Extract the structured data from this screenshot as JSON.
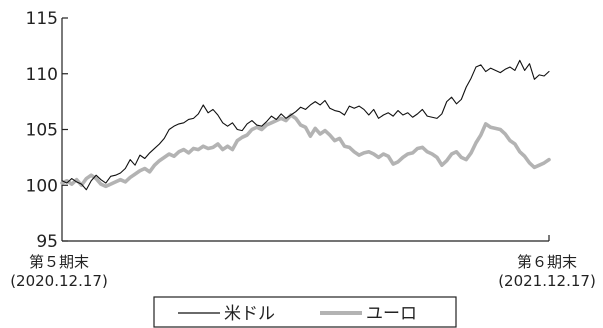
{
  "chart_data": {
    "type": "line",
    "ylim": [
      95,
      115
    ],
    "yticks": [
      95,
      100,
      105,
      110,
      115
    ],
    "x_start_label": "第５期末",
    "x_start_date": "(2020.12.17)",
    "x_end_label": "第６期末",
    "x_end_date": "(2021.12.17)",
    "legend": {
      "placement": "bottom-center"
    },
    "x_range": [
      0,
      100
    ],
    "series": [
      {
        "name": "米ドル",
        "color": "#111111",
        "style": "thin",
        "points": [
          [
            0,
            100.4
          ],
          [
            1,
            100.2
          ],
          [
            2,
            100.6
          ],
          [
            3,
            100.3
          ],
          [
            4,
            100.1
          ],
          [
            5,
            99.6
          ],
          [
            6,
            100.4
          ],
          [
            7,
            100.9
          ],
          [
            8,
            100.5
          ],
          [
            9,
            100.2
          ],
          [
            10,
            100.8
          ],
          [
            11,
            100.9
          ],
          [
            12,
            101.1
          ],
          [
            13,
            101.5
          ],
          [
            14,
            102.3
          ],
          [
            15,
            101.8
          ],
          [
            16,
            102.7
          ],
          [
            17,
            102.4
          ],
          [
            18,
            102.9
          ],
          [
            19,
            103.3
          ],
          [
            20,
            103.7
          ],
          [
            21,
            104.2
          ],
          [
            22,
            105.0
          ],
          [
            23,
            105.3
          ],
          [
            24,
            105.5
          ],
          [
            25,
            105.6
          ],
          [
            26,
            105.9
          ],
          [
            27,
            106.0
          ],
          [
            28,
            106.4
          ],
          [
            29,
            107.2
          ],
          [
            30,
            106.5
          ],
          [
            31,
            106.8
          ],
          [
            32,
            106.3
          ],
          [
            33,
            105.6
          ],
          [
            34,
            105.3
          ],
          [
            35,
            105.6
          ],
          [
            36,
            105.0
          ],
          [
            37,
            104.9
          ],
          [
            38,
            105.5
          ],
          [
            39,
            105.8
          ],
          [
            40,
            105.4
          ],
          [
            41,
            105.3
          ],
          [
            42,
            105.7
          ],
          [
            43,
            106.2
          ],
          [
            44,
            105.9
          ],
          [
            45,
            106.4
          ],
          [
            46,
            106.0
          ],
          [
            47,
            106.3
          ],
          [
            48,
            106.6
          ],
          [
            49,
            107.0
          ],
          [
            50,
            106.8
          ],
          [
            51,
            107.2
          ],
          [
            52,
            107.5
          ],
          [
            53,
            107.2
          ],
          [
            54,
            107.6
          ],
          [
            55,
            106.9
          ],
          [
            56,
            106.7
          ],
          [
            57,
            106.6
          ],
          [
            58,
            106.3
          ],
          [
            59,
            107.1
          ],
          [
            60,
            106.9
          ],
          [
            61,
            107.1
          ],
          [
            62,
            106.8
          ],
          [
            63,
            106.3
          ],
          [
            64,
            106.8
          ],
          [
            65,
            106.0
          ],
          [
            66,
            106.3
          ],
          [
            67,
            106.5
          ],
          [
            68,
            106.2
          ],
          [
            69,
            106.7
          ],
          [
            70,
            106.3
          ],
          [
            71,
            106.5
          ],
          [
            72,
            106.1
          ],
          [
            73,
            106.4
          ],
          [
            74,
            106.8
          ],
          [
            75,
            106.2
          ],
          [
            76,
            106.1
          ],
          [
            77,
            106.0
          ],
          [
            78,
            106.4
          ],
          [
            79,
            107.5
          ],
          [
            80,
            107.9
          ],
          [
            81,
            107.3
          ],
          [
            82,
            107.7
          ],
          [
            83,
            108.8
          ],
          [
            84,
            109.6
          ],
          [
            85,
            110.6
          ],
          [
            86,
            110.8
          ],
          [
            87,
            110.2
          ],
          [
            88,
            110.5
          ],
          [
            89,
            110.3
          ],
          [
            90,
            110.1
          ],
          [
            91,
            110.4
          ],
          [
            92,
            110.6
          ],
          [
            93,
            110.3
          ],
          [
            94,
            111.2
          ],
          [
            95,
            110.3
          ],
          [
            96,
            110.9
          ],
          [
            97,
            109.5
          ],
          [
            98,
            109.9
          ],
          [
            99,
            109.8
          ],
          [
            100,
            110.2
          ]
        ]
      },
      {
        "name": "ユーロ",
        "color": "#b3b3b3",
        "style": "thick",
        "points": [
          [
            0,
            100.2
          ],
          [
            1,
            100.4
          ],
          [
            2,
            100.1
          ],
          [
            3,
            100.5
          ],
          [
            4,
            100.0
          ],
          [
            5,
            100.6
          ],
          [
            6,
            100.9
          ],
          [
            7,
            100.6
          ],
          [
            8,
            100.1
          ],
          [
            9,
            99.9
          ],
          [
            10,
            100.1
          ],
          [
            11,
            100.3
          ],
          [
            12,
            100.5
          ],
          [
            13,
            100.3
          ],
          [
            14,
            100.7
          ],
          [
            15,
            101.0
          ],
          [
            16,
            101.3
          ],
          [
            17,
            101.5
          ],
          [
            18,
            101.2
          ],
          [
            19,
            101.8
          ],
          [
            20,
            102.2
          ],
          [
            21,
            102.5
          ],
          [
            22,
            102.8
          ],
          [
            23,
            102.6
          ],
          [
            24,
            103.0
          ],
          [
            25,
            103.2
          ],
          [
            26,
            102.9
          ],
          [
            27,
            103.3
          ],
          [
            28,
            103.2
          ],
          [
            29,
            103.5
          ],
          [
            30,
            103.3
          ],
          [
            31,
            103.4
          ],
          [
            32,
            103.7
          ],
          [
            33,
            103.2
          ],
          [
            34,
            103.5
          ],
          [
            35,
            103.2
          ],
          [
            36,
            104.0
          ],
          [
            37,
            104.3
          ],
          [
            38,
            104.5
          ],
          [
            39,
            105.0
          ],
          [
            40,
            105.2
          ],
          [
            41,
            105.0
          ],
          [
            42,
            105.4
          ],
          [
            43,
            105.6
          ],
          [
            44,
            105.8
          ],
          [
            45,
            106.0
          ],
          [
            46,
            105.8
          ],
          [
            47,
            106.3
          ],
          [
            48,
            106.0
          ],
          [
            49,
            105.4
          ],
          [
            50,
            105.2
          ],
          [
            51,
            104.4
          ],
          [
            52,
            105.1
          ],
          [
            53,
            104.6
          ],
          [
            54,
            104.9
          ],
          [
            55,
            104.5
          ],
          [
            56,
            104.0
          ],
          [
            57,
            104.2
          ],
          [
            58,
            103.5
          ],
          [
            59,
            103.4
          ],
          [
            60,
            103.0
          ],
          [
            61,
            102.7
          ],
          [
            62,
            102.9
          ],
          [
            63,
            103.0
          ],
          [
            64,
            102.8
          ],
          [
            65,
            102.5
          ],
          [
            66,
            102.8
          ],
          [
            67,
            102.6
          ],
          [
            68,
            101.9
          ],
          [
            69,
            102.1
          ],
          [
            70,
            102.5
          ],
          [
            71,
            102.8
          ],
          [
            72,
            102.9
          ],
          [
            73,
            103.3
          ],
          [
            74,
            103.4
          ],
          [
            75,
            103.0
          ],
          [
            76,
            102.8
          ],
          [
            77,
            102.5
          ],
          [
            78,
            101.8
          ],
          [
            79,
            102.2
          ],
          [
            80,
            102.8
          ],
          [
            81,
            103.0
          ],
          [
            82,
            102.5
          ],
          [
            83,
            102.3
          ],
          [
            84,
            102.9
          ],
          [
            85,
            103.8
          ],
          [
            86,
            104.5
          ],
          [
            87,
            105.5
          ],
          [
            88,
            105.2
          ],
          [
            89,
            105.1
          ],
          [
            90,
            105.0
          ],
          [
            91,
            104.6
          ],
          [
            92,
            104.0
          ],
          [
            93,
            103.7
          ],
          [
            94,
            103.0
          ],
          [
            95,
            102.6
          ],
          [
            96,
            102.0
          ],
          [
            97,
            101.6
          ],
          [
            98,
            101.8
          ],
          [
            99,
            102.0
          ],
          [
            100,
            102.3
          ]
        ]
      }
    ]
  }
}
